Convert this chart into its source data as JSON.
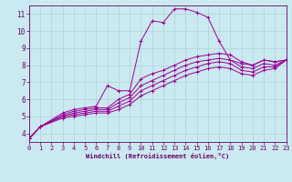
{
  "background_color": "#cbe9f0",
  "line_color": "#990099",
  "grid_color": "#aad4d8",
  "xlabel": "Windchill (Refroidissement éolien,°C)",
  "xlabel_color": "#660066",
  "tick_color": "#660066",
  "xlim": [
    0,
    23
  ],
  "ylim": [
    3.5,
    11.5
  ],
  "yticks": [
    4,
    5,
    6,
    7,
    8,
    9,
    10,
    11
  ],
  "xticks": [
    0,
    1,
    2,
    3,
    4,
    5,
    6,
    7,
    8,
    9,
    10,
    11,
    12,
    13,
    14,
    15,
    16,
    17,
    18,
    19,
    20,
    21,
    22,
    23
  ],
  "series": [
    [
      [
        0,
        1,
        3,
        4,
        5,
        6,
        7,
        8,
        9,
        10,
        11,
        12,
        13,
        14,
        15,
        16,
        17,
        18,
        19,
        20,
        21,
        22,
        23
      ],
      [
        3.7,
        4.4,
        5.2,
        5.4,
        5.5,
        5.6,
        6.8,
        6.5,
        6.5,
        9.4,
        10.6,
        10.5,
        11.3,
        11.3,
        11.1,
        10.8,
        9.4,
        8.3,
        8.1,
        8.0,
        8.3,
        8.2,
        8.3
      ]
    ],
    [
      [
        0,
        1,
        3,
        4,
        5,
        6,
        7,
        8,
        9,
        10,
        11,
        12,
        13,
        14,
        15,
        16,
        17,
        18,
        19,
        20,
        21,
        22,
        23
      ],
      [
        3.7,
        4.4,
        5.1,
        5.3,
        5.4,
        5.5,
        5.5,
        6.0,
        6.3,
        7.2,
        7.5,
        7.7,
        8.0,
        8.3,
        8.5,
        8.6,
        8.7,
        8.6,
        8.2,
        8.0,
        8.3,
        8.2,
        8.3
      ]
    ],
    [
      [
        0,
        1,
        3,
        4,
        5,
        6,
        7,
        8,
        9,
        10,
        11,
        12,
        13,
        14,
        15,
        16,
        17,
        18,
        19,
        20,
        21,
        22,
        23
      ],
      [
        3.7,
        4.4,
        5.0,
        5.2,
        5.3,
        5.4,
        5.4,
        5.8,
        6.1,
        6.8,
        7.1,
        7.4,
        7.7,
        8.0,
        8.2,
        8.3,
        8.4,
        8.3,
        7.9,
        7.8,
        8.1,
        8.0,
        8.3
      ]
    ],
    [
      [
        0,
        1,
        3,
        4,
        5,
        6,
        7,
        8,
        9,
        10,
        11,
        12,
        13,
        14,
        15,
        16,
        17,
        18,
        19,
        20,
        21,
        22,
        23
      ],
      [
        3.7,
        4.4,
        5.0,
        5.1,
        5.2,
        5.3,
        5.3,
        5.6,
        5.9,
        6.5,
        6.8,
        7.1,
        7.4,
        7.7,
        7.9,
        8.1,
        8.2,
        8.1,
        7.7,
        7.6,
        7.9,
        7.9,
        8.3
      ]
    ],
    [
      [
        0,
        1,
        3,
        4,
        5,
        6,
        7,
        8,
        9,
        10,
        11,
        12,
        13,
        14,
        15,
        16,
        17,
        18,
        19,
        20,
        21,
        22,
        23
      ],
      [
        3.7,
        4.4,
        4.9,
        5.0,
        5.1,
        5.2,
        5.2,
        5.4,
        5.7,
        6.2,
        6.5,
        6.8,
        7.1,
        7.4,
        7.6,
        7.8,
        7.9,
        7.8,
        7.5,
        7.4,
        7.7,
        7.8,
        8.3
      ]
    ]
  ],
  "marker": "+"
}
